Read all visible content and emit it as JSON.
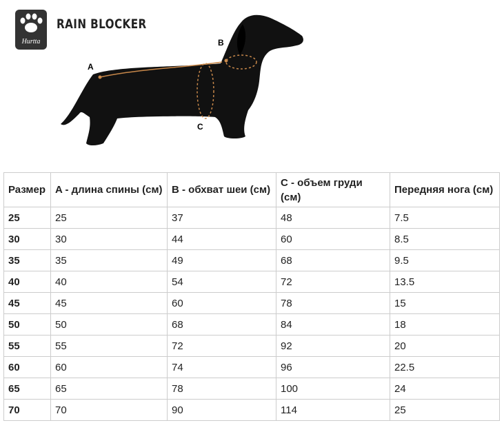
{
  "header": {
    "logo": "Hurtta",
    "title": "RAIN BLOCKER"
  },
  "diagram": {
    "labels": [
      "A",
      "B",
      "C"
    ]
  },
  "table": {
    "headers": [
      "Размер",
      "A - длина спины (см)",
      "B - обхват шеи (см)",
      "C - объем груди (см)",
      "Передняя нога (см)"
    ],
    "rows": [
      [
        "25",
        "25",
        "37",
        "48",
        "7.5"
      ],
      [
        "30",
        "30",
        "44",
        "60",
        "8.5"
      ],
      [
        "35",
        "35",
        "49",
        "68",
        "9.5"
      ],
      [
        "40",
        "40",
        "54",
        "72",
        "13.5"
      ],
      [
        "45",
        "45",
        "60",
        "78",
        "15"
      ],
      [
        "50",
        "50",
        "68",
        "84",
        "18"
      ],
      [
        "55",
        "55",
        "72",
        "92",
        "20"
      ],
      [
        "60",
        "60",
        "74",
        "96",
        "22.5"
      ],
      [
        "65",
        "65",
        "78",
        "100",
        "24"
      ],
      [
        "70",
        "70",
        "90",
        "114",
        "25"
      ]
    ]
  }
}
